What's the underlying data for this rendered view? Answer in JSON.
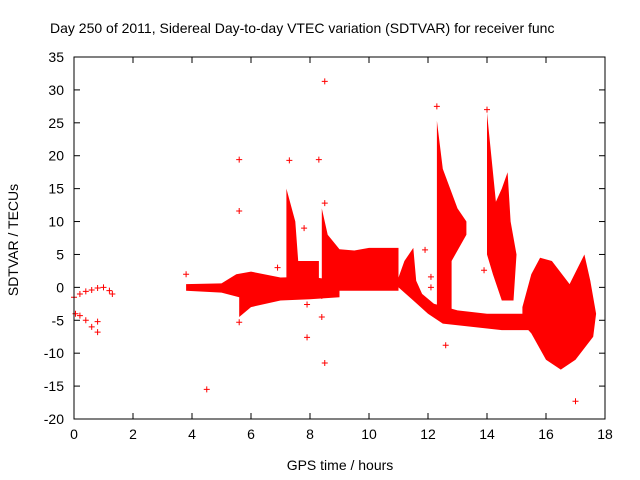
{
  "chart_data": {
    "type": "scatter",
    "title": "Day 250 of 2011, Sidereal Day-to-day VTEC variation (SDTVAR) for receiver func",
    "xlabel": "GPS time / hours",
    "ylabel": "SDTVAR / TECUs",
    "xlim": [
      0,
      18
    ],
    "ylim": [
      -20,
      35
    ],
    "x_ticks": [
      0,
      2,
      4,
      6,
      8,
      10,
      12,
      14,
      16,
      18
    ],
    "y_ticks": [
      -20,
      -15,
      -10,
      -5,
      0,
      5,
      10,
      15,
      20,
      25,
      30,
      35
    ],
    "grid": false,
    "marker": "+",
    "color": "#ff0000",
    "series": [
      {
        "name": "SDTVAR",
        "points": [
          [
            0.0,
            -1.5
          ],
          [
            0.2,
            -1.0
          ],
          [
            0.4,
            -0.6
          ],
          [
            0.6,
            -0.4
          ],
          [
            0.8,
            -0.1
          ],
          [
            1.0,
            0.0
          ],
          [
            1.2,
            -0.5
          ],
          [
            1.3,
            -1.0
          ],
          [
            0.05,
            -4.0
          ],
          [
            0.2,
            -4.3
          ],
          [
            0.4,
            -5.0
          ],
          [
            0.6,
            -6.0
          ],
          [
            0.8,
            -6.8
          ],
          [
            0.8,
            -5.2
          ],
          [
            3.8,
            2.0
          ],
          [
            4.5,
            -15.5
          ],
          [
            5.6,
            19.4
          ],
          [
            5.6,
            11.6
          ],
          [
            5.6,
            -5.3
          ],
          [
            6.9,
            3.0
          ],
          [
            7.3,
            19.3
          ],
          [
            7.8,
            9.0
          ],
          [
            7.9,
            -7.6
          ],
          [
            7.9,
            -2.6
          ],
          [
            8.3,
            19.4
          ],
          [
            8.4,
            -1.3
          ],
          [
            8.4,
            -4.5
          ],
          [
            8.5,
            12.8
          ],
          [
            8.5,
            31.3
          ],
          [
            8.5,
            -11.5
          ],
          [
            11.9,
            5.7
          ],
          [
            12.1,
            1.6
          ],
          [
            12.1,
            0.0
          ],
          [
            12.3,
            -4.0
          ],
          [
            12.3,
            27.5
          ],
          [
            12.6,
            -8.8
          ],
          [
            14.0,
            27.0
          ],
          [
            13.9,
            2.6
          ],
          [
            17.0,
            -17.3
          ]
        ]
      }
    ]
  }
}
